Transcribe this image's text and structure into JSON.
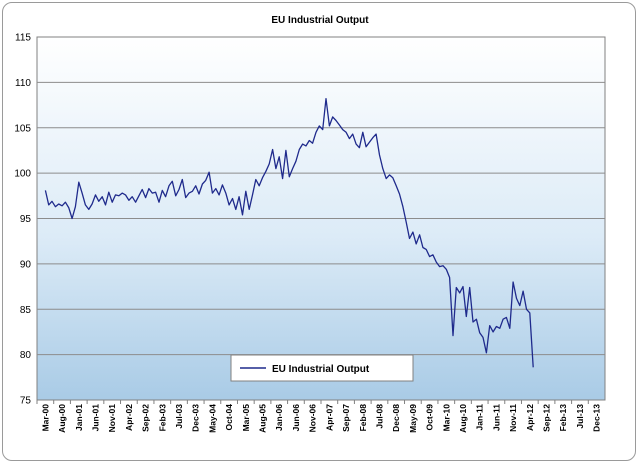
{
  "chart_data": {
    "type": "line",
    "title": "EU Industrial Output",
    "xlabel": "",
    "ylabel": "",
    "ylim": [
      75,
      115
    ],
    "yticks": [
      75,
      80,
      85,
      90,
      95,
      100,
      105,
      110,
      115
    ],
    "x_tick_labels": [
      "Mar-00",
      "Aug-00",
      "Jan-01",
      "Jun-01",
      "Nov-01",
      "Apr-02",
      "Sep-02",
      "Feb-03",
      "Jul-03",
      "Dec-03",
      "May-04",
      "Oct-04",
      "Mar-05",
      "Aug-05",
      "Jan-06",
      "Jun-06",
      "Nov-06",
      "Apr-07",
      "Sep-07",
      "Feb-08",
      "Jul-08",
      "Dec-08",
      "May-09",
      "Oct-09",
      "Mar-10",
      "Aug-10",
      "Jan-11",
      "Jun-11",
      "Nov-11",
      "Apr-12",
      "Sep-12",
      "Feb-13",
      "Jul-13",
      "Dec-13"
    ],
    "grid": true,
    "legend": "bottom-center",
    "series": [
      {
        "name": "EU Industrial Output",
        "color": "#1f2a8c",
        "values": [
          98.1,
          96.5,
          96.9,
          96.3,
          96.6,
          96.4,
          96.8,
          96.2,
          95.0,
          96.3,
          99.0,
          97.8,
          96.5,
          96.0,
          96.6,
          97.6,
          96.9,
          97.4,
          96.5,
          97.9,
          96.8,
          97.6,
          97.5,
          97.8,
          97.6,
          97.0,
          97.4,
          96.8,
          97.5,
          98.2,
          97.3,
          98.3,
          97.8,
          97.9,
          96.8,
          98.1,
          97.4,
          98.6,
          99.1,
          97.5,
          98.2,
          99.3,
          97.3,
          97.8,
          98.0,
          98.6,
          97.7,
          98.8,
          99.2,
          100.1,
          97.8,
          98.3,
          97.6,
          98.7,
          97.8,
          96.5,
          97.2,
          96.0,
          97.4,
          95.4,
          98.0,
          96.0,
          97.6,
          99.3,
          98.6,
          99.5,
          100.2,
          101.0,
          102.6,
          100.5,
          101.8,
          99.4,
          102.5,
          99.6,
          100.5,
          101.3,
          102.6,
          103.2,
          103.0,
          103.6,
          103.3,
          104.5,
          105.2,
          104.8,
          108.2,
          105.2,
          106.2,
          105.8,
          105.3,
          104.8,
          104.5,
          103.8,
          104.3,
          103.2,
          102.8,
          104.5,
          102.9,
          103.4,
          103.9,
          104.3,
          102.0,
          100.5,
          99.4,
          99.8,
          99.5,
          98.6,
          97.7,
          96.3,
          94.6,
          92.8,
          93.5,
          92.2,
          93.2,
          91.8,
          91.6,
          90.8,
          91.0,
          90.2,
          89.7,
          89.8,
          89.4,
          88.5,
          82.1,
          87.4,
          86.8,
          87.5,
          84.2,
          87.4,
          83.6,
          83.9,
          82.4,
          81.9,
          80.2,
          83.2,
          82.5,
          83.1,
          82.9,
          83.9,
          84.1,
          82.9,
          88.0,
          86.2,
          85.4,
          87.0,
          85.0,
          84.6,
          78.6
        ]
      }
    ]
  }
}
